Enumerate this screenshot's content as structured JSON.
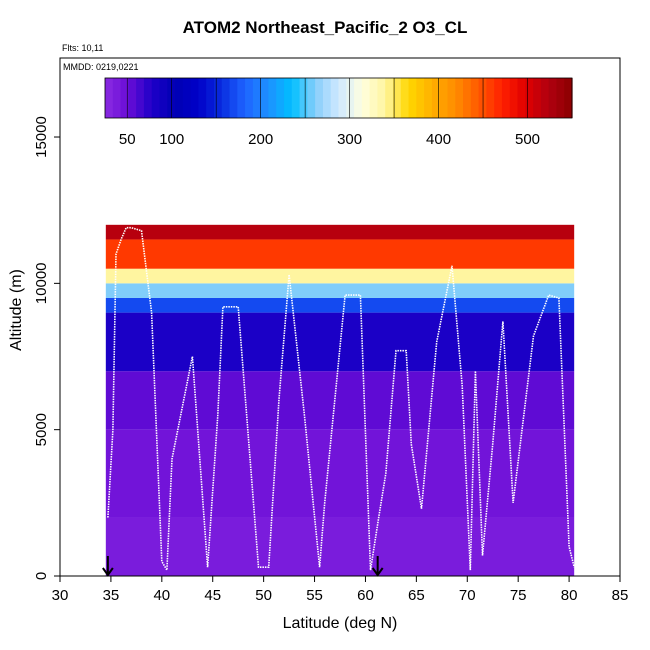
{
  "chart_data": {
    "type": "heatmap",
    "title": "ATOM2 Northeast_Pacific_2 O3_CL",
    "flights_note": "Flts: 10,11",
    "date_note": "MMDD: 0219,0221",
    "xlabel": "Latitude (deg N)",
    "ylabel": "Altitude (m)",
    "xlim": [
      30,
      85
    ],
    "ylim": [
      0,
      17700
    ],
    "x_ticks": [
      30,
      35,
      40,
      45,
      50,
      55,
      60,
      65,
      70,
      75,
      80,
      85
    ],
    "y_ticks": [
      0,
      5000,
      10000,
      15000
    ],
    "grid": false,
    "colorbar": {
      "position": "top-inside",
      "range": [
        25,
        550
      ],
      "ticks": [
        50,
        100,
        200,
        300,
        400,
        500
      ],
      "colors": [
        "#8a2be2",
        "#6a0dd6",
        "#1e00c8",
        "#0000b4",
        "#0000c8",
        "#0a2ee0",
        "#1e64ff",
        "#1e90ff",
        "#00bfff",
        "#87cefa",
        "#cfe8ff",
        "#ffffe0",
        "#fff5a0",
        "#ffd700",
        "#ffb000",
        "#ff8c00",
        "#ff5a00",
        "#ff2000",
        "#e00000",
        "#b00010",
        "#8b0000"
      ]
    },
    "colored_region": {
      "lat_range": [
        34.5,
        80.5
      ],
      "bands": [
        {
          "alt": [
            0,
            2000
          ],
          "o3": 38
        },
        {
          "alt": [
            2000,
            5000
          ],
          "o3": 45
        },
        {
          "alt": [
            5000,
            7000
          ],
          "o3": 55
        },
        {
          "alt": [
            7000,
            9000
          ],
          "o3": 80
        },
        {
          "alt": [
            9000,
            9500
          ],
          "o3": 170
        },
        {
          "alt": [
            9500,
            10000
          ],
          "o3": 260
        },
        {
          "alt": [
            10000,
            10500
          ],
          "o3": 340
        },
        {
          "alt": [
            10500,
            11500
          ],
          "o3": 460
        },
        {
          "alt": [
            11500,
            12000
          ],
          "o3": 520
        }
      ]
    },
    "flight_track": {
      "lat": [
        34.7,
        35.2,
        35.5,
        36.0,
        36.5,
        37.0,
        38.0,
        39.0,
        40.0,
        40.5,
        41.0,
        43.0,
        44.5,
        45.5,
        46.0,
        47.5,
        49.5,
        50.5,
        51.5,
        52.5,
        54.0,
        55.5,
        56.0,
        58.0,
        59.5,
        60.5,
        61.3,
        62.0,
        63.0,
        64.0,
        64.5,
        65.5,
        67.0,
        68.5,
        69.5,
        70.3,
        70.8,
        71.5,
        72.5,
        73.5,
        74.5,
        76.5,
        78.0,
        79.0,
        80.0,
        80.5
      ],
      "alt": [
        2000,
        5000,
        11000,
        11500,
        11900,
        11900,
        11800,
        9000,
        500,
        200,
        4000,
        7500,
        300,
        5500,
        9200,
        9200,
        300,
        300,
        6000,
        10300,
        5500,
        300,
        2500,
        9600,
        9600,
        200,
        2000,
        3500,
        7700,
        7700,
        4500,
        2300,
        8000,
        10600,
        6500,
        200,
        7000,
        700,
        4500,
        8700,
        2500,
        8200,
        9600,
        9500,
        1000,
        300
      ]
    },
    "markers": [
      {
        "lat": 34.7,
        "label": "arrow"
      },
      {
        "lat": 61.2,
        "label": "arrow"
      }
    ]
  }
}
